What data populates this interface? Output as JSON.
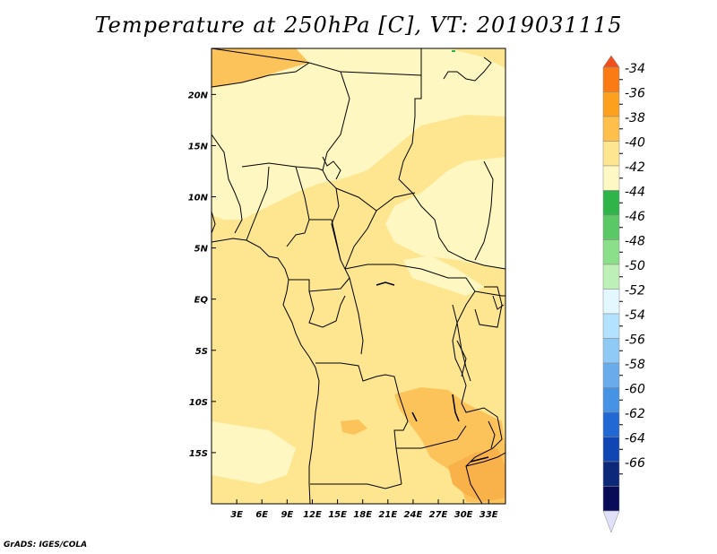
{
  "title": "Temperature at 250hPa [C], VT: 2019031115",
  "credit": "GrADS: IGES/COLA",
  "map": {
    "lon_range": [
      0,
      35
    ],
    "lat_range": [
      -20,
      24.5
    ],
    "lon_ticks": [
      "3E",
      "6E",
      "9E",
      "12E",
      "15E",
      "18E",
      "21E",
      "24E",
      "27E",
      "30E",
      "33E"
    ],
    "lat_ticks": [
      "20N",
      "15N",
      "10N",
      "5N",
      "EQ",
      "5S",
      "10S",
      "15S"
    ],
    "background_color": "#fde68f"
  },
  "colorbar": {
    "labels": [
      "-34",
      "-36",
      "-38",
      "-40",
      "-42",
      "-44",
      "-46",
      "-48",
      "-50",
      "-52",
      "-54",
      "-56",
      "-58",
      "-60",
      "-62",
      "-64",
      "-66"
    ],
    "colors": [
      "#f0501e",
      "#fa7b14",
      "#fca01e",
      "#fec04a",
      "#fde68f",
      "#fef9c4",
      "#2fb44a",
      "#5ac864",
      "#8bde8a",
      "#bdf0b6",
      "#e2f8fe",
      "#b2e2fe",
      "#8ecaf4",
      "#68acec",
      "#4692e4",
      "#2268d4",
      "#1046b4",
      "#0c2878",
      "#080c58",
      "#e0e0f8"
    ]
  }
}
